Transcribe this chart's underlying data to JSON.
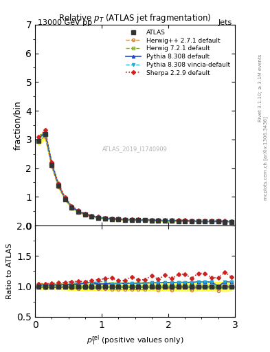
{
  "title": "Relative $p_T$ (ATLAS jet fragmentation)",
  "top_left_label": "13000 GeV pp",
  "top_right_label": "Jets",
  "ylabel_main": "fraction/bin",
  "ylabel_ratio": "Ratio to ATLAS",
  "xlabel": "$p_{\\mathrm{T}}^{\\mathrm{textrm[rel]}}$ (positive values only)",
  "watermark": "ATLAS_2019_I1740909",
  "right_label1": "Rivet 3.1.10; ≥ 3.1M events",
  "right_label2": "mcplots.cern.ch [arXiv:1306.3436]",
  "ylim_main": [
    0,
    7
  ],
  "ylim_ratio": [
    0.5,
    2.0
  ],
  "xlim": [
    0,
    3
  ],
  "x_data": [
    0.05,
    0.15,
    0.25,
    0.35,
    0.45,
    0.55,
    0.65,
    0.75,
    0.85,
    0.95,
    1.05,
    1.15,
    1.25,
    1.35,
    1.45,
    1.55,
    1.65,
    1.75,
    1.85,
    1.95,
    2.05,
    2.15,
    2.25,
    2.35,
    2.45,
    2.55,
    2.65,
    2.75,
    2.85,
    2.95
  ],
  "atlas_y": [
    2.95,
    3.18,
    2.1,
    1.38,
    0.92,
    0.63,
    0.48,
    0.38,
    0.31,
    0.27,
    0.24,
    0.22,
    0.21,
    0.2,
    0.19,
    0.19,
    0.18,
    0.17,
    0.17,
    0.16,
    0.16,
    0.15,
    0.15,
    0.15,
    0.14,
    0.14,
    0.14,
    0.14,
    0.13,
    0.13
  ],
  "atlas_err_stat": [
    0.02,
    0.02,
    0.015,
    0.01,
    0.008,
    0.006,
    0.005,
    0.004,
    0.003,
    0.003,
    0.003,
    0.003,
    0.003,
    0.003,
    0.003,
    0.003,
    0.003,
    0.003,
    0.003,
    0.003,
    0.003,
    0.003,
    0.003,
    0.003,
    0.003,
    0.003,
    0.003,
    0.003,
    0.003,
    0.003
  ],
  "atlas_err_sys": [
    0.15,
    0.16,
    0.1,
    0.07,
    0.05,
    0.04,
    0.03,
    0.025,
    0.02,
    0.018,
    0.016,
    0.015,
    0.014,
    0.013,
    0.013,
    0.013,
    0.012,
    0.012,
    0.012,
    0.011,
    0.011,
    0.011,
    0.011,
    0.011,
    0.01,
    0.01,
    0.01,
    0.01,
    0.01,
    0.009
  ],
  "herwig_pp_y": [
    2.92,
    3.1,
    2.06,
    1.35,
    0.9,
    0.61,
    0.46,
    0.37,
    0.3,
    0.26,
    0.23,
    0.21,
    0.2,
    0.19,
    0.18,
    0.18,
    0.17,
    0.17,
    0.16,
    0.16,
    0.15,
    0.15,
    0.15,
    0.14,
    0.14,
    0.14,
    0.14,
    0.13,
    0.13,
    0.13
  ],
  "herwig72_y": [
    2.98,
    3.22,
    2.13,
    1.4,
    0.93,
    0.64,
    0.49,
    0.39,
    0.32,
    0.28,
    0.25,
    0.23,
    0.22,
    0.21,
    0.2,
    0.2,
    0.19,
    0.18,
    0.18,
    0.17,
    0.17,
    0.16,
    0.16,
    0.16,
    0.15,
    0.15,
    0.15,
    0.14,
    0.14,
    0.14
  ],
  "pythia308_y": [
    3.02,
    3.25,
    2.15,
    1.42,
    0.95,
    0.65,
    0.5,
    0.4,
    0.33,
    0.28,
    0.25,
    0.23,
    0.22,
    0.21,
    0.2,
    0.2,
    0.19,
    0.18,
    0.18,
    0.17,
    0.17,
    0.16,
    0.16,
    0.16,
    0.15,
    0.15,
    0.15,
    0.14,
    0.14,
    0.14
  ],
  "pythia_vincia_y": [
    3.05,
    3.28,
    2.17,
    1.43,
    0.96,
    0.66,
    0.51,
    0.4,
    0.33,
    0.29,
    0.26,
    0.23,
    0.22,
    0.21,
    0.2,
    0.2,
    0.19,
    0.18,
    0.18,
    0.17,
    0.17,
    0.16,
    0.16,
    0.16,
    0.15,
    0.15,
    0.15,
    0.14,
    0.14,
    0.14
  ],
  "sherpa_y": [
    3.08,
    3.32,
    2.2,
    1.46,
    0.98,
    0.68,
    0.52,
    0.41,
    0.34,
    0.3,
    0.27,
    0.25,
    0.23,
    0.22,
    0.22,
    0.21,
    0.2,
    0.2,
    0.19,
    0.19,
    0.18,
    0.18,
    0.18,
    0.17,
    0.17,
    0.17,
    0.16,
    0.16,
    0.16,
    0.15
  ],
  "color_herwig_pp": "#cc8844",
  "color_herwig72": "#88aa44",
  "color_pythia308": "#2244cc",
  "color_pythia_vincia": "#22aacc",
  "color_sherpa": "#cc2222",
  "color_atlas": "#333333",
  "green_band_inner": 0.05,
  "green_band_outer": 0.15,
  "yticks_main": [
    0,
    1,
    2,
    3,
    4,
    5,
    6,
    7
  ],
  "yticks_ratio": [
    0.5,
    1.0,
    1.5,
    2.0
  ],
  "xticks": [
    0,
    1,
    2,
    3
  ]
}
